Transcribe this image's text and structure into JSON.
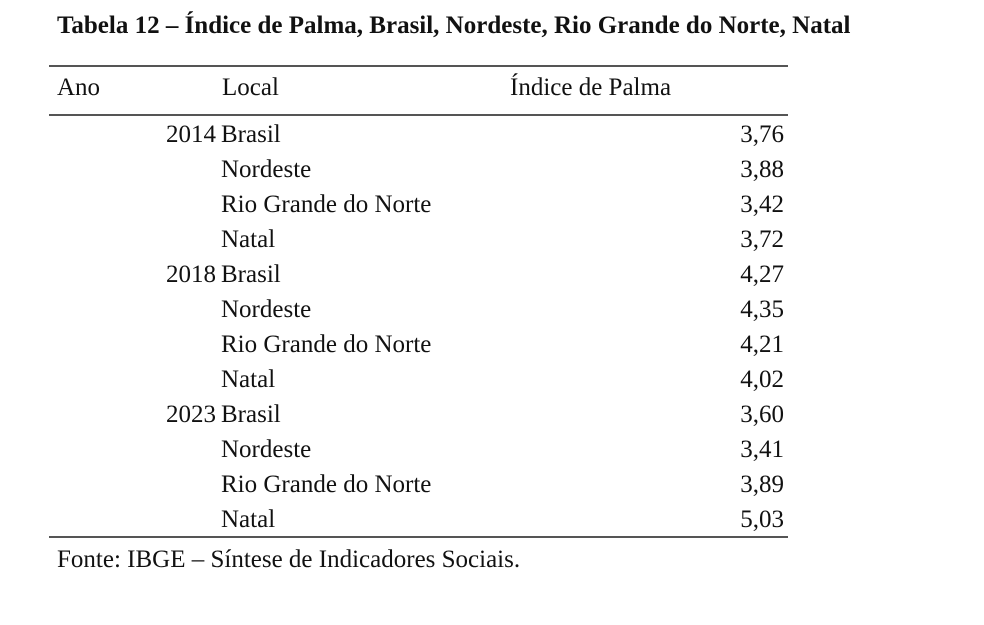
{
  "document": {
    "title": "Tabela 12 – Índice de Palma, Brasil, Nordeste, Rio Grande do Norte, Natal",
    "table": {
      "headers": [
        "Ano",
        "Local",
        "Índice de Palma"
      ],
      "rows": [
        {
          "year": "2014",
          "local": "Brasil",
          "value": "3,76"
        },
        {
          "year": "",
          "local": "Nordeste",
          "value": "3,88"
        },
        {
          "year": "",
          "local": "Rio Grande do Norte",
          "value": "3,42"
        },
        {
          "year": "",
          "local": "Natal",
          "value": "3,72"
        },
        {
          "year": "2018",
          "local": "Brasil",
          "value": "4,27"
        },
        {
          "year": "",
          "local": "Nordeste",
          "value": "4,35"
        },
        {
          "year": "",
          "local": "Rio Grande do Norte",
          "value": "4,21"
        },
        {
          "year": "",
          "local": "Natal",
          "value": "4,02"
        },
        {
          "year": "2023",
          "local": "Brasil",
          "value": "3,60"
        },
        {
          "year": "",
          "local": "Nordeste",
          "value": "3,41"
        },
        {
          "year": "",
          "local": "Rio Grande do Norte",
          "value": "3,89"
        },
        {
          "year": "",
          "local": "Natal",
          "value": "5,03"
        }
      ]
    },
    "source": "Fonte: IBGE – Síntese de Indicadores Sociais."
  }
}
